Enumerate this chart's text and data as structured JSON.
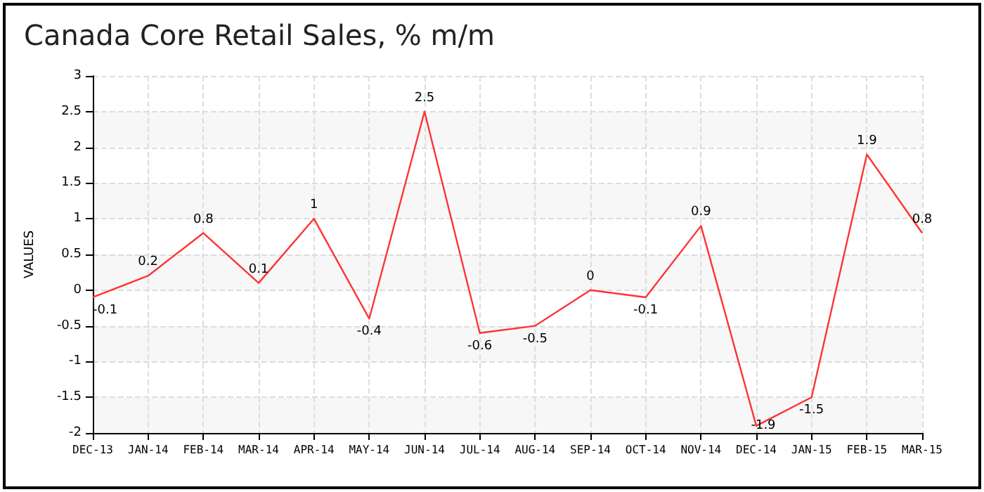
{
  "chart_data": {
    "type": "line",
    "title": "Canada Core Retail Sales, % m/m",
    "ylabel": "VALUES",
    "categories": [
      "DEC-13",
      "JAN-14",
      "FEB-14",
      "MAR-14",
      "APR-14",
      "MAY-14",
      "JUN-14",
      "JUL-14",
      "AUG-14",
      "SEP-14",
      "OCT-14",
      "NOV-14",
      "DEC-14",
      "JAN-15",
      "FEB-15",
      "MAR-15"
    ],
    "values": [
      -0.1,
      0.2,
      0.8,
      0.1,
      1,
      -0.4,
      2.5,
      -0.6,
      -0.5,
      0,
      -0.1,
      0.9,
      -1.9,
      -1.5,
      1.9,
      0.8
    ],
    "color": "#ff3333",
    "ylim": [
      -2,
      3
    ],
    "yticks": [
      -2,
      -1.5,
      -1,
      -0.5,
      0,
      0.5,
      1,
      1.5,
      2,
      2.5,
      3
    ],
    "grid": true,
    "data_labels": true,
    "marker": "none",
    "line_style": "solid"
  }
}
